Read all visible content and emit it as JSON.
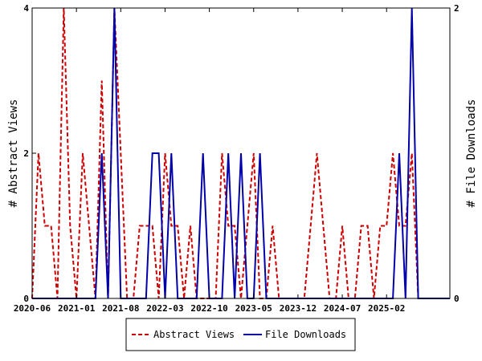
{
  "chart_data": {
    "type": "line",
    "ylabel_left": "# Abstract Views",
    "ylabel_right": "# File Downloads",
    "x_tick_labels": [
      "2020-06",
      "2021-01",
      "2021-08",
      "2022-03",
      "2022-10",
      "2023-05",
      "2023-12",
      "2024-07",
      "2025-02"
    ],
    "ylim_left": [
      0,
      4
    ],
    "ylim_right": [
      0,
      2
    ],
    "y_ticks_left": [
      "0",
      "2",
      "4"
    ],
    "y_ticks_right": [
      "0",
      "2"
    ],
    "x_range": [
      "2020-06",
      "2025-12"
    ],
    "legend_position": "bottom-center",
    "grid": false,
    "series": [
      {
        "name": "Abstract Views",
        "axis": "left",
        "color": "#cc0000",
        "style": "dashed",
        "points": [
          [
            "2020-06",
            0
          ],
          [
            "2020-07",
            2
          ],
          [
            "2020-08",
            1
          ],
          [
            "2020-09",
            1
          ],
          [
            "2020-10",
            0
          ],
          [
            "2020-11",
            4
          ],
          [
            "2020-12",
            1
          ],
          [
            "2021-01",
            0
          ],
          [
            "2021-02",
            2
          ],
          [
            "2021-03",
            1
          ],
          [
            "2021-04",
            0
          ],
          [
            "2021-05",
            3
          ],
          [
            "2021-06",
            0
          ],
          [
            "2021-07",
            4
          ],
          [
            "2021-08",
            2
          ],
          [
            "2021-09",
            0
          ],
          [
            "2021-10",
            0
          ],
          [
            "2021-11",
            1
          ],
          [
            "2021-12",
            1
          ],
          [
            "2022-01",
            1
          ],
          [
            "2022-02",
            0
          ],
          [
            "2022-03",
            2
          ],
          [
            "2022-04",
            1
          ],
          [
            "2022-05",
            1
          ],
          [
            "2022-06",
            0
          ],
          [
            "2022-07",
            1
          ],
          [
            "2022-08",
            0
          ],
          [
            "2022-09",
            0
          ],
          [
            "2022-10",
            0
          ],
          [
            "2022-11",
            0
          ],
          [
            "2022-12",
            2
          ],
          [
            "2023-01",
            1
          ],
          [
            "2023-02",
            1
          ],
          [
            "2023-03",
            0
          ],
          [
            "2023-04",
            1
          ],
          [
            "2023-05",
            2
          ],
          [
            "2023-06",
            0
          ],
          [
            "2023-07",
            0
          ],
          [
            "2023-08",
            1
          ],
          [
            "2023-09",
            0
          ],
          [
            "2023-10",
            0
          ],
          [
            "2023-11",
            0
          ],
          [
            "2023-12",
            0
          ],
          [
            "2024-01",
            0
          ],
          [
            "2024-02",
            1
          ],
          [
            "2024-03",
            2
          ],
          [
            "2024-04",
            1
          ],
          [
            "2024-05",
            0
          ],
          [
            "2024-06",
            0
          ],
          [
            "2024-07",
            1
          ],
          [
            "2024-08",
            0
          ],
          [
            "2024-09",
            0
          ],
          [
            "2024-10",
            1
          ],
          [
            "2024-11",
            1
          ],
          [
            "2024-12",
            0
          ],
          [
            "2025-01",
            1
          ],
          [
            "2025-02",
            1
          ],
          [
            "2025-03",
            2
          ],
          [
            "2025-04",
            1
          ],
          [
            "2025-05",
            1
          ],
          [
            "2025-06",
            2
          ],
          [
            "2025-07",
            0
          ]
        ]
      },
      {
        "name": "File Downloads",
        "axis": "right",
        "color": "#0000aa",
        "style": "solid",
        "points": [
          [
            "2020-06",
            0
          ],
          [
            "2021-04",
            0
          ],
          [
            "2021-05",
            1
          ],
          [
            "2021-06",
            0
          ],
          [
            "2021-07",
            2
          ],
          [
            "2021-08",
            0
          ],
          [
            "2021-12",
            0
          ],
          [
            "2022-01",
            1
          ],
          [
            "2022-02",
            1
          ],
          [
            "2022-03",
            0
          ],
          [
            "2022-04",
            1
          ],
          [
            "2022-05",
            0
          ],
          [
            "2022-08",
            0
          ],
          [
            "2022-09",
            1
          ],
          [
            "2022-10",
            0
          ],
          [
            "2022-12",
            0
          ],
          [
            "2023-01",
            1
          ],
          [
            "2023-02",
            0
          ],
          [
            "2023-03",
            1
          ],
          [
            "2023-04",
            0
          ],
          [
            "2023-05",
            0
          ],
          [
            "2023-06",
            1
          ],
          [
            "2023-07",
            0
          ],
          [
            "2025-03",
            0
          ],
          [
            "2025-04",
            1
          ],
          [
            "2025-05",
            0
          ],
          [
            "2025-06",
            2
          ],
          [
            "2025-07",
            0
          ],
          [
            "2025-12",
            0
          ]
        ]
      }
    ]
  }
}
